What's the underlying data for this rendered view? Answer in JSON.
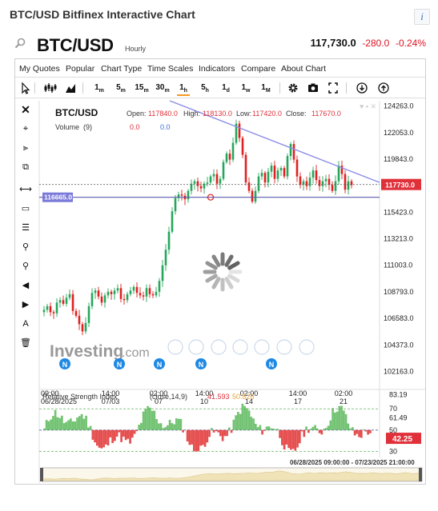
{
  "page": {
    "title": "BTC/USD Bitfinex Interactive Chart",
    "info_icon": "i"
  },
  "quote": {
    "symbol": "BTC/USD",
    "interval": "Hourly",
    "last": "117,730.0",
    "change": "-280.0",
    "change_pct": "-0.24%"
  },
  "menu": [
    "My Quotes",
    "Popular",
    "Chart Type",
    "Time Scales",
    "Indicators",
    "Compare",
    "About Chart"
  ],
  "toolbar": {
    "intervals": [
      "1",
      "5",
      "15",
      "30",
      "1",
      "5",
      "1",
      "1",
      "1"
    ],
    "interval_units": [
      "m",
      "m",
      "m",
      "m",
      "h",
      "h",
      "d",
      "w",
      "M"
    ],
    "active_index": 4
  },
  "legend": {
    "symbol": "BTC/USD",
    "open_label": "Open:",
    "open": "117840.0",
    "high_label": "High:",
    "high": "118130.0",
    "low_label": "Low:",
    "low": "117420.0",
    "close_label": "Close:",
    "close": "117670.0",
    "volume_label": "Volume",
    "volume_period": "(9)",
    "volume_a": "0.0",
    "volume_b": "0.0"
  },
  "watermark": {
    "brand": "Investing",
    "suffix": ".com"
  },
  "rsi": {
    "label": "Relative Strength Index",
    "params": "(close,14,9)",
    "value_a": "41.593",
    "value_b": "50.826",
    "current": "42.25"
  },
  "range_label": "06/28/2025 09:00:00 - 07/23/2025 21:00:00",
  "colors": {
    "up": "#26a65b",
    "down": "#e02020",
    "trend": "#8c8ce6",
    "hline": "#5a5aaa",
    "rsi_up": "#5cb85c",
    "rsi_down": "#e03030",
    "rsi_signal": "#e8a23a",
    "price_tag": "#e0303a",
    "hline_tag": "#7a7ad9"
  },
  "chart_data": {
    "type": "candlestick",
    "y_axis": {
      "ticks": [
        "124263.0",
        "122053.0",
        "119843.0",
        "117633.0",
        "115423.0",
        "113213.0",
        "111003.0",
        "108793.0",
        "106583.0",
        "104373.0",
        "102163.0"
      ],
      "ylim": [
        101000,
        124700
      ]
    },
    "x_axis": {
      "ticks": [
        [
          "09:00",
          "06/28/2025"
        ],
        [
          "14:00",
          "07/03"
        ],
        [
          "02:00",
          "07"
        ],
        [
          "14:00",
          "10"
        ],
        [
          "02:00",
          "14"
        ],
        [
          "14:00",
          "17"
        ],
        [
          "02:00",
          "21"
        ]
      ]
    },
    "series": [
      {
        "name": "BTC/USD Hourly (approx. close path)",
        "values": [
          107300,
          107600,
          107100,
          107000,
          107900,
          108100,
          107800,
          108300,
          108600,
          107200,
          106800,
          106100,
          105500,
          106200,
          107600,
          108700,
          108900,
          108400,
          107900,
          108500,
          108800,
          108600,
          108900,
          109100,
          108200,
          108100,
          108600,
          108900,
          109200,
          108700,
          108500,
          108400,
          109100,
          108600,
          108500,
          108800,
          109700,
          111000,
          112300,
          113800,
          115500,
          116600,
          116900,
          116800,
          116500,
          117200,
          117800,
          118000,
          117600,
          117400,
          117800,
          117900,
          118400,
          118600,
          117800,
          118200,
          119600,
          120300,
          119800,
          121200,
          122800,
          121600,
          120200,
          117900,
          117200,
          116300,
          117200,
          118400,
          118700,
          117900,
          118800,
          119300,
          118200,
          118900,
          119100,
          118400,
          120100,
          121100,
          119800,
          118400,
          117700,
          118000,
          117600,
          118300,
          118900,
          118100,
          117600,
          118000,
          118200,
          117700,
          117200,
          118000,
          119300,
          118600,
          117300,
          118000,
          117670
        ]
      }
    ],
    "levels": {
      "horizontal_line": "116665.0",
      "last_price": "117730.0"
    },
    "trendline": "descending from ~124700 (06/28) to ~118000 (07/23)",
    "rsi_axis": {
      "ticks": [
        "83.19",
        "70",
        "61.49",
        "50",
        "30"
      ]
    },
    "grid": false,
    "legend_position": "top-left"
  }
}
